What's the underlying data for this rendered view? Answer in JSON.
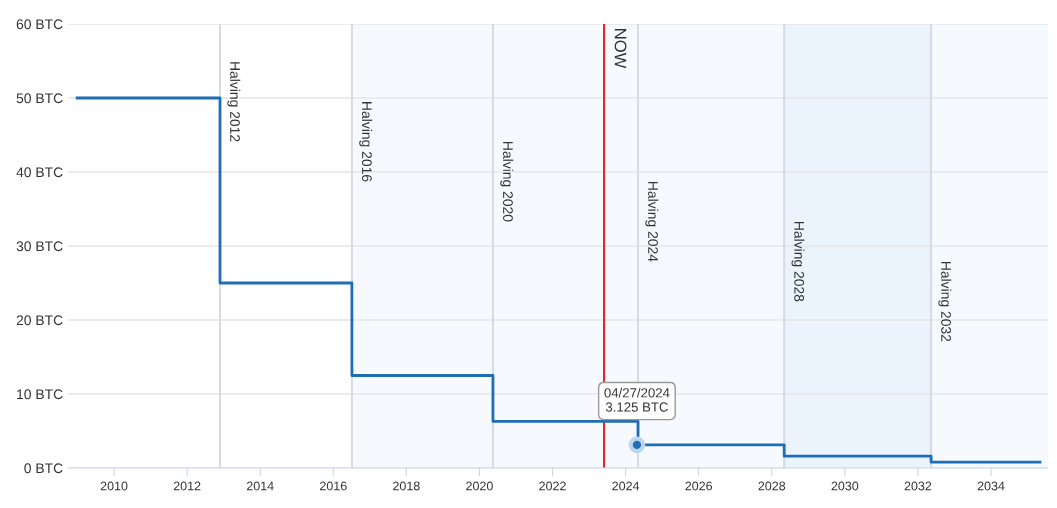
{
  "chart_data": {
    "type": "step",
    "x": [
      2008.99,
      2012.9,
      2016.51,
      2020.37,
      2024.34,
      2028.34,
      2032.36,
      2035.34
    ],
    "series": [
      {
        "color": "#1f6db5",
        "values": [
          50,
          25,
          12.5,
          6.3,
          3.125,
          1.6,
          0.8,
          0.8
        ]
      }
    ],
    "xlim": [
      2008.74,
      2035.56
    ],
    "xticks": [
      2010,
      2012,
      2014,
      2016,
      2018,
      2020,
      2022,
      2024,
      2026,
      2028,
      2030,
      2032,
      2034
    ],
    "ylim": [
      0,
      60
    ],
    "yticks": [
      {
        "value": 0,
        "label": "0 BTC"
      },
      {
        "value": 10,
        "label": "10 BTC"
      },
      {
        "value": 20,
        "label": "20 BTC"
      },
      {
        "value": 30,
        "label": "30 BTC"
      },
      {
        "value": 40,
        "label": "40 BTC"
      },
      {
        "value": 50,
        "label": "50 BTC"
      },
      {
        "value": 60,
        "label": "60 BTC"
      }
    ],
    "grid": "y",
    "line_style": "solid",
    "bands": [
      {
        "axis": "x",
        "from": 2016.51,
        "to": 2028.34,
        "color": "#f6f9fe"
      },
      {
        "axis": "x",
        "from": 2028.34,
        "to": 2032.36,
        "color": "#ebf3fd"
      },
      {
        "axis": "x",
        "from": 2032.36,
        "to": 2035.56,
        "color": "#f6f9fe"
      }
    ],
    "ref_lines": [
      {
        "axis": "x",
        "value": 2012.9,
        "label": "Halving 2012",
        "color": "#d6dce4"
      },
      {
        "axis": "x",
        "value": 2016.51,
        "label": "Halving 2016",
        "color": "#d6dce4"
      },
      {
        "axis": "x",
        "value": 2020.37,
        "label": "Halving 2020",
        "color": "#d6dce4"
      },
      {
        "axis": "x",
        "value": 2024.34,
        "label": "Halving 2024",
        "color": "#d6dce4"
      },
      {
        "axis": "x",
        "value": 2028.34,
        "label": "Halving 2028",
        "color": "#d6dce4"
      },
      {
        "axis": "x",
        "value": 2032.36,
        "label": "Halving 2032",
        "color": "#d6dce4"
      },
      {
        "axis": "x",
        "value": 2023.41,
        "label": "NOW",
        "color": "#e8232a"
      }
    ],
    "annotations": [
      {
        "text": "04/27/2024\n3.125 BTC",
        "x": 2024.31,
        "y": 3.125
      }
    ]
  }
}
